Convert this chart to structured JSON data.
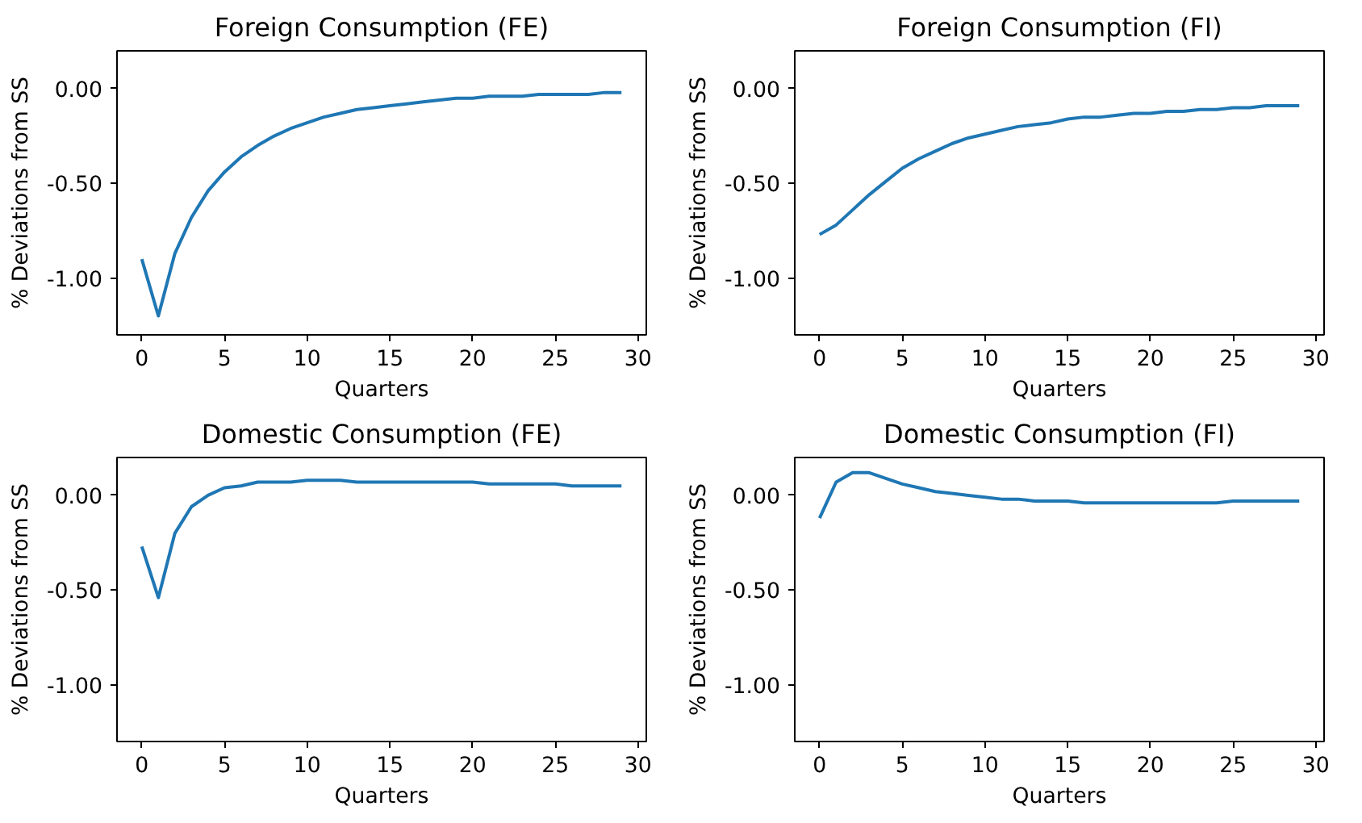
{
  "chart_data": [
    {
      "type": "line",
      "title": "Foreign Consumption (FE)",
      "xlabel": "Quarters",
      "ylabel": "% Deviations from SS",
      "x": [
        0,
        1,
        2,
        3,
        4,
        5,
        6,
        7,
        8,
        9,
        10,
        11,
        12,
        13,
        14,
        15,
        16,
        17,
        18,
        19,
        20,
        21,
        22,
        23,
        24,
        25,
        26,
        27,
        28,
        29
      ],
      "series": [
        {
          "color": "#1f77b4",
          "values": [
            -0.9,
            -1.2,
            -0.87,
            -0.68,
            -0.54,
            -0.44,
            -0.36,
            -0.3,
            -0.25,
            -0.21,
            -0.18,
            -0.15,
            -0.13,
            -0.11,
            -0.1,
            -0.09,
            -0.08,
            -0.07,
            -0.06,
            -0.05,
            -0.05,
            -0.04,
            -0.04,
            -0.04,
            -0.03,
            -0.03,
            -0.03,
            -0.03,
            -0.02,
            -0.02
          ]
        }
      ],
      "xlim": [
        -1.5,
        30.5
      ],
      "ylim": [
        -1.3,
        0.2
      ],
      "xticks": [
        0,
        5,
        10,
        15,
        20,
        25,
        30
      ],
      "yticks": [
        {
          "value": 0,
          "label": "0.00"
        },
        {
          "value": -0.5,
          "label": "-0.50"
        },
        {
          "value": -1,
          "label": "-1.00"
        }
      ]
    },
    {
      "type": "line",
      "title": "Foreign Consumption (FI)",
      "xlabel": "Quarters",
      "ylabel": "% Deviations from SS",
      "x": [
        0,
        1,
        2,
        3,
        4,
        5,
        6,
        7,
        8,
        9,
        10,
        11,
        12,
        13,
        14,
        15,
        16,
        17,
        18,
        19,
        20,
        21,
        22,
        23,
        24,
        25,
        26,
        27,
        28,
        29
      ],
      "series": [
        {
          "color": "#1f77b4",
          "values": [
            -0.77,
            -0.72,
            -0.64,
            -0.56,
            -0.49,
            -0.42,
            -0.37,
            -0.33,
            -0.29,
            -0.26,
            -0.24,
            -0.22,
            -0.2,
            -0.19,
            -0.18,
            -0.16,
            -0.15,
            -0.15,
            -0.14,
            -0.13,
            -0.13,
            -0.12,
            -0.12,
            -0.11,
            -0.11,
            -0.1,
            -0.1,
            -0.09,
            -0.09,
            -0.09
          ]
        }
      ],
      "xlim": [
        -1.5,
        30.5
      ],
      "ylim": [
        -1.3,
        0.2
      ],
      "xticks": [
        0,
        5,
        10,
        15,
        20,
        25,
        30
      ],
      "yticks": [
        {
          "value": 0,
          "label": "0.00"
        },
        {
          "value": -0.5,
          "label": "-0.50"
        },
        {
          "value": -1,
          "label": "-1.00"
        }
      ]
    },
    {
      "type": "line",
      "title": "Domestic Consumption (FE)",
      "xlabel": "Quarters",
      "ylabel": "% Deviations from SS",
      "x": [
        0,
        1,
        2,
        3,
        4,
        5,
        6,
        7,
        8,
        9,
        10,
        11,
        12,
        13,
        14,
        15,
        16,
        17,
        18,
        19,
        20,
        21,
        22,
        23,
        24,
        25,
        26,
        27,
        28,
        29
      ],
      "series": [
        {
          "color": "#1f77b4",
          "values": [
            -0.27,
            -0.54,
            -0.2,
            -0.06,
            0.0,
            0.04,
            0.05,
            0.07,
            0.07,
            0.07,
            0.08,
            0.08,
            0.08,
            0.07,
            0.07,
            0.07,
            0.07,
            0.07,
            0.07,
            0.07,
            0.07,
            0.06,
            0.06,
            0.06,
            0.06,
            0.06,
            0.05,
            0.05,
            0.05,
            0.05
          ]
        }
      ],
      "xlim": [
        -1.5,
        30.5
      ],
      "ylim": [
        -1.3,
        0.2
      ],
      "xticks": [
        0,
        5,
        10,
        15,
        20,
        25,
        30
      ],
      "yticks": [
        {
          "value": 0,
          "label": "0.00"
        },
        {
          "value": -0.5,
          "label": "-0.50"
        },
        {
          "value": -1,
          "label": "-1.00"
        }
      ]
    },
    {
      "type": "line",
      "title": "Domestic Consumption (FI)",
      "xlabel": "Quarters",
      "ylabel": "% Deviations from SS",
      "x": [
        0,
        1,
        2,
        3,
        4,
        5,
        6,
        7,
        8,
        9,
        10,
        11,
        12,
        13,
        14,
        15,
        16,
        17,
        18,
        19,
        20,
        21,
        22,
        23,
        24,
        25,
        26,
        27,
        28,
        29
      ],
      "series": [
        {
          "color": "#1f77b4",
          "values": [
            -0.12,
            0.07,
            0.12,
            0.12,
            0.09,
            0.06,
            0.04,
            0.02,
            0.01,
            0.0,
            -0.01,
            -0.02,
            -0.02,
            -0.03,
            -0.03,
            -0.03,
            -0.04,
            -0.04,
            -0.04,
            -0.04,
            -0.04,
            -0.04,
            -0.04,
            -0.04,
            -0.04,
            -0.03,
            -0.03,
            -0.03,
            -0.03,
            -0.03
          ]
        }
      ],
      "xlim": [
        -1.5,
        30.5
      ],
      "ylim": [
        -1.3,
        0.2
      ],
      "xticks": [
        0,
        5,
        10,
        15,
        20,
        25,
        30
      ],
      "yticks": [
        {
          "value": 0,
          "label": "0.00"
        },
        {
          "value": -0.5,
          "label": "-0.50"
        },
        {
          "value": -1,
          "label": "-1.00"
        }
      ]
    }
  ]
}
